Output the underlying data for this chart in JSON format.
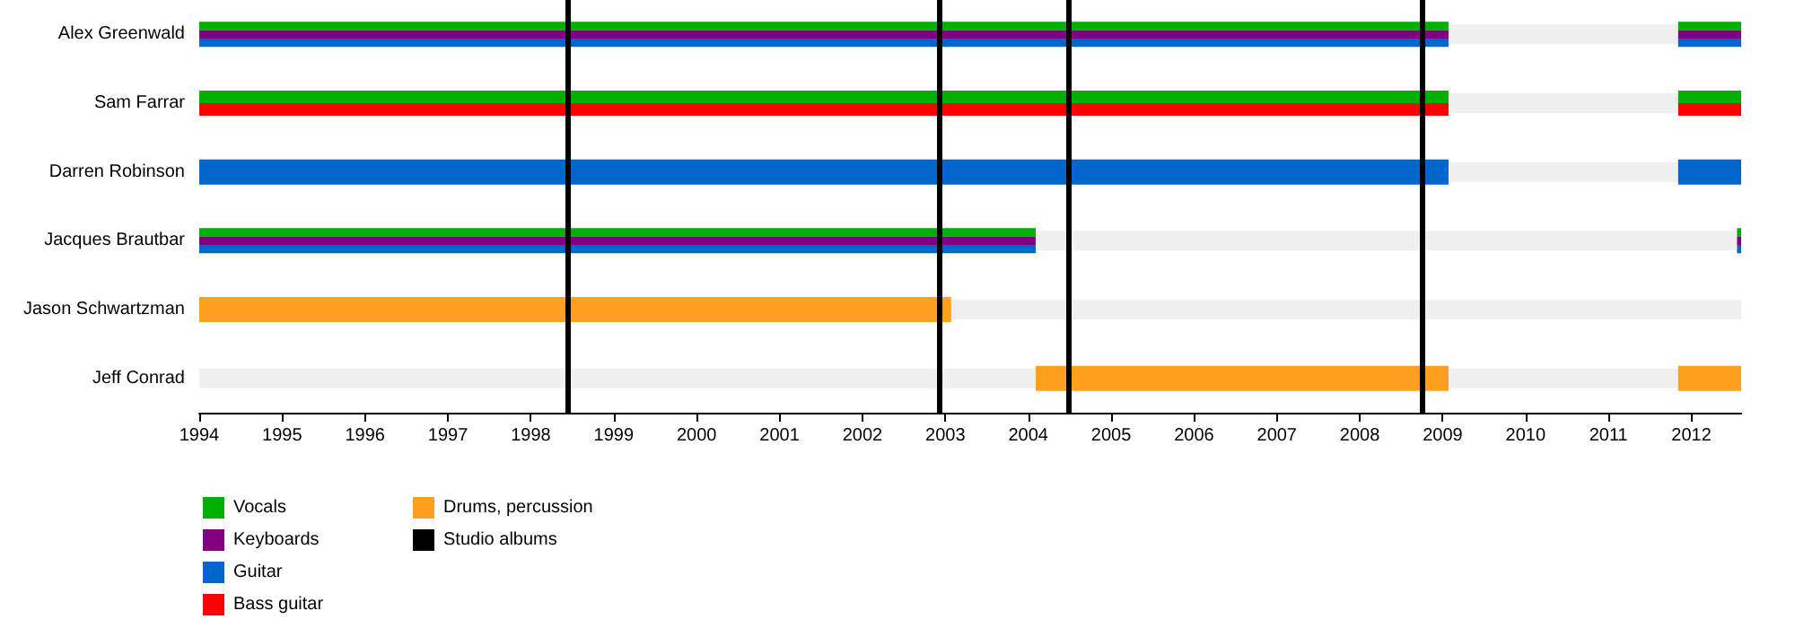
{
  "chart_data": {
    "type": "bar",
    "orientation": "horizontal",
    "categories": [
      "Alex Greenwald",
      "Sam Farrar",
      "Darren Robinson",
      "Jacques Brautbar",
      "Jason Schwartzman",
      "Jeff Conrad"
    ],
    "series": [
      {
        "color": "#f0f0f0",
        "base": [
          2009.07,
          2009.07,
          2009.07,
          2004.09,
          2003.07,
          1994
        ],
        "values": [
          2.77,
          2.77,
          2.77,
          8.46,
          9.53,
          10.09
        ]
      },
      {
        "color": "#f0f0f0",
        "base": [
          null,
          null,
          null,
          null,
          null,
          2009.07
        ],
        "values": [
          null,
          null,
          null,
          null,
          null,
          2.77
        ]
      },
      {
        "name": "Vocals",
        "color": "#00b000",
        "base": [
          1994,
          1994,
          null,
          1994,
          null,
          null
        ],
        "values": [
          15.07,
          15.07,
          null,
          10.09,
          null,
          null
        ]
      },
      {
        "name": "Keyboards",
        "color": "#800080",
        "base": [
          1994,
          null,
          null,
          1994,
          null,
          null
        ],
        "values": [
          15.07,
          null,
          null,
          10.09,
          null,
          null
        ]
      },
      {
        "name": "Guitar",
        "color": "#0066cc",
        "base": [
          1994,
          null,
          1994,
          1994,
          null,
          null
        ],
        "values": [
          15.07,
          null,
          15.07,
          10.09,
          null,
          null
        ]
      },
      {
        "name": "Bass guitar",
        "color": "#ff0000",
        "base": [
          null,
          1994,
          null,
          null,
          null,
          null
        ],
        "values": [
          null,
          15.07,
          null,
          null,
          null,
          null
        ]
      },
      {
        "name": "Drums, percussion",
        "color": "#ffa020",
        "base": [
          null,
          null,
          null,
          null,
          1994,
          2004.09
        ],
        "values": [
          null,
          null,
          null,
          null,
          9.07,
          4.98
        ]
      },
      {
        "color": "#00b000",
        "base": [
          2011.84,
          2011.84,
          null,
          2012.55,
          null,
          null
        ],
        "values": [
          0.76,
          0.76,
          null,
          0.05,
          null,
          null
        ]
      },
      {
        "color": "#800080",
        "base": [
          2011.84,
          null,
          null,
          2012.55,
          null,
          null
        ],
        "values": [
          0.76,
          null,
          null,
          0.05,
          null,
          null
        ]
      },
      {
        "color": "#0066cc",
        "base": [
          2011.84,
          null,
          2011.84,
          2012.55,
          null,
          null
        ],
        "values": [
          0.76,
          null,
          0.76,
          0.05,
          null,
          null
        ]
      },
      {
        "color": "#ff0000",
        "base": [
          null,
          2011.84,
          null,
          null,
          null,
          null
        ],
        "values": [
          null,
          0.76,
          null,
          null,
          null,
          null
        ]
      },
      {
        "color": "#ffa020",
        "base": [
          null,
          null,
          null,
          null,
          null,
          2011.84
        ],
        "values": [
          null,
          null,
          null,
          null,
          null,
          0.76
        ]
      }
    ],
    "ref_lines": [
      {
        "axis": "x",
        "value": 1998.44,
        "label": "Studio albums",
        "color": "#000000"
      },
      {
        "axis": "x",
        "value": 2002.92,
        "color": "#000000"
      },
      {
        "axis": "x",
        "value": 2004.48,
        "color": "#000000"
      },
      {
        "axis": "x",
        "value": 2008.75,
        "color": "#000000"
      }
    ],
    "xlim": [
      1994,
      2012.6
    ],
    "xticks": [
      1994,
      1995,
      1996,
      1997,
      1998,
      1999,
      2000,
      2001,
      2002,
      2003,
      2004,
      2005,
      2006,
      2007,
      2008,
      2009,
      2010,
      2011,
      2012
    ],
    "grid": false,
    "legend": "bottom"
  }
}
